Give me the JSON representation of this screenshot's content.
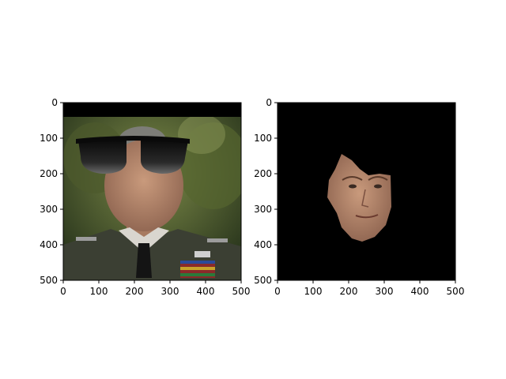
{
  "chart_data": [
    {
      "type": "image",
      "panel": "left",
      "description_label": "photo with sunglasses overlay",
      "xlim": [
        0,
        500
      ],
      "ylim": [
        500,
        0
      ],
      "xticks": [
        0,
        100,
        200,
        300,
        400,
        500
      ],
      "yticks": [
        0,
        100,
        200,
        300,
        400,
        500
      ],
      "xtick_labels": [
        "0",
        "100",
        "200",
        "300",
        "400",
        "500"
      ],
      "ytick_labels": [
        "0",
        "100",
        "200",
        "300",
        "400",
        "500"
      ],
      "title": "",
      "xlabel": "",
      "ylabel": ""
    },
    {
      "type": "image",
      "panel": "right",
      "description_label": "segmented face on black background",
      "xlim": [
        0,
        500
      ],
      "ylim": [
        500,
        0
      ],
      "xticks": [
        0,
        100,
        200,
        300,
        400,
        500
      ],
      "yticks": [
        0,
        100,
        200,
        300,
        400,
        500
      ],
      "xtick_labels": [
        "0",
        "100",
        "200",
        "300",
        "400",
        "500"
      ],
      "ytick_labels": [
        "0",
        "100",
        "200",
        "300",
        "400",
        "500"
      ],
      "title": "",
      "xlabel": "",
      "ylabel": ""
    }
  ],
  "colors": {
    "black_band": "#000000",
    "foliage_dark": "#2f3a1c",
    "foliage_light": "#6b7a3c",
    "uniform": "#3b3f33",
    "skin": "#b88a6e",
    "shirt": "#d9d6cf",
    "tie": "#1a1a1a",
    "lens": "#1e1e1e"
  }
}
